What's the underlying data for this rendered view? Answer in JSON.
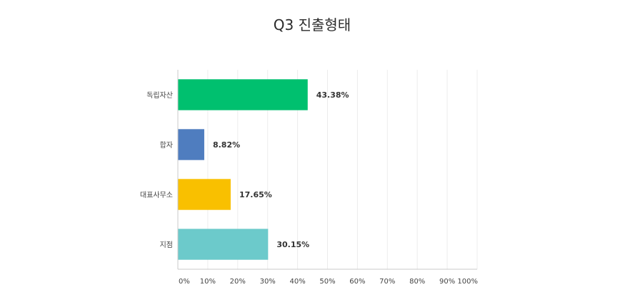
{
  "chart_data": {
    "type": "bar",
    "orientation": "horizontal",
    "title": "Q3 진출형태",
    "categories": [
      "독립자산",
      "합자",
      "대표사무소",
      "지점"
    ],
    "values": [
      43.38,
      8.82,
      17.65,
      30.15
    ],
    "value_labels": [
      "43.38%",
      "8.82%",
      "17.65%",
      "30.15%"
    ],
    "colors": [
      "#00c06f",
      "#4f7dbf",
      "#f9c000",
      "#6ccacb"
    ],
    "xlim": [
      0,
      100
    ],
    "xticks": [
      0,
      10,
      20,
      30,
      40,
      50,
      60,
      70,
      80,
      90,
      100
    ],
    "xtick_labels": [
      "0%",
      "10%",
      "20%",
      "30%",
      "40%",
      "50%",
      "60%",
      "70%",
      "80%",
      "90%",
      "100%"
    ],
    "grid": true,
    "legend": "none"
  }
}
